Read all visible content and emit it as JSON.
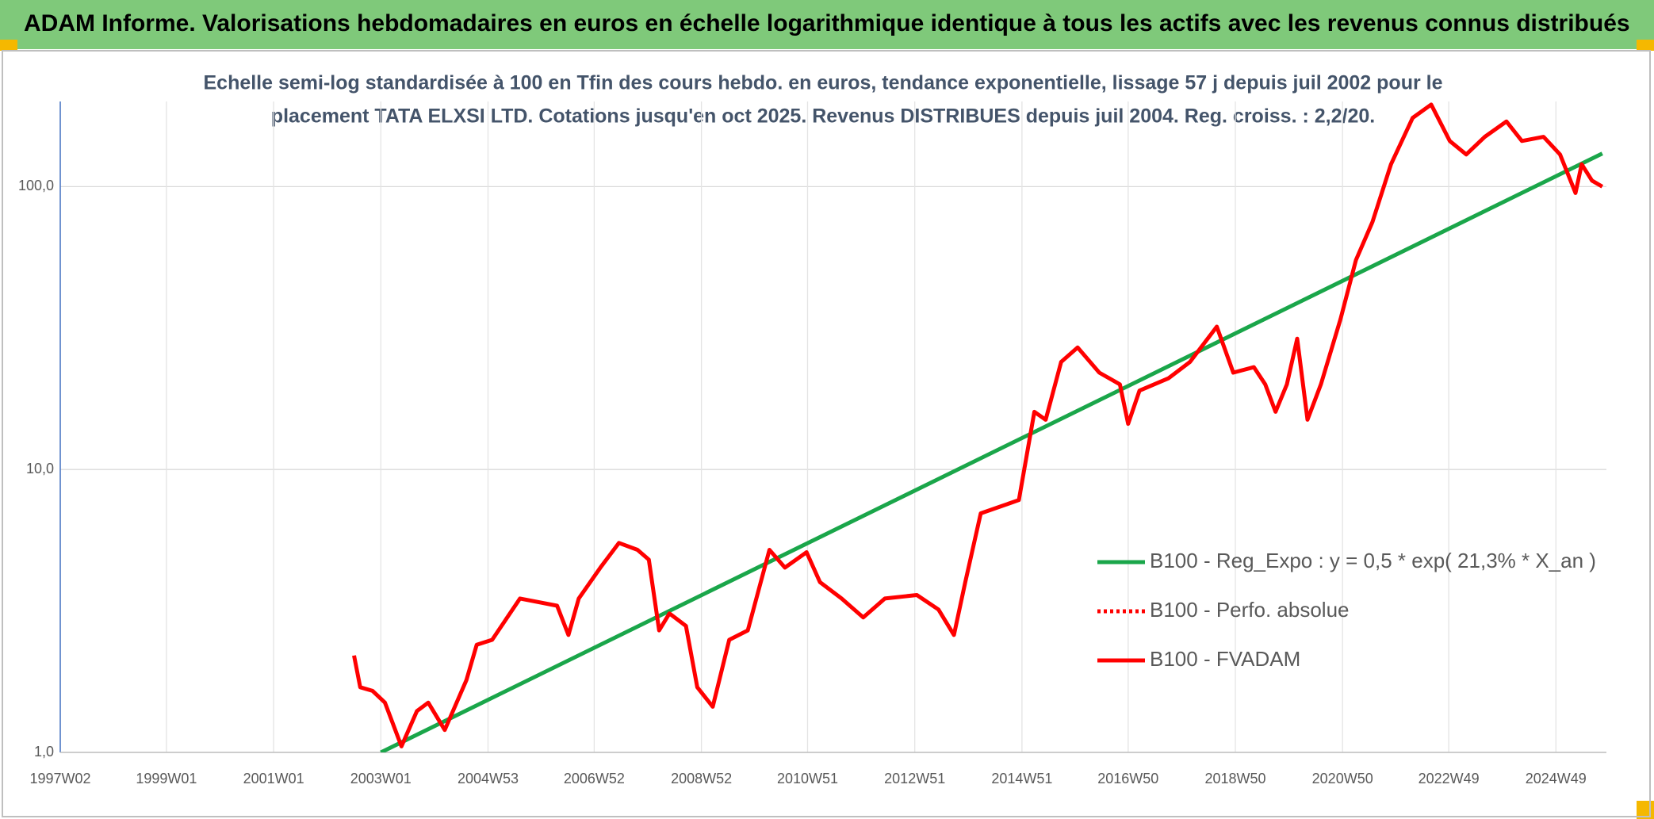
{
  "chart_data": {
    "type": "line",
    "header": "ADAM Informe. Valorisations hebdomadaires en euros en échelle logarithmique identique à tous les actifs avec les revenus connus distribués",
    "title_lines": [
      "Echelle semi-log standardisée à 100 en Tfin des cours hebdo. en euros, tendance exponentielle, lissage 57 j depuis juil 2002 pour le",
      "placement TATA ELXSI LTD. Cotations jusqu'en oct 2025. Revenus DISTRIBUES depuis juil 2004. Reg. croiss. : 2,2/20."
    ],
    "log_y": true,
    "ylim": [
      1,
      200
    ],
    "yticks": [
      {
        "value": 1,
        "label": "1,0"
      },
      {
        "value": 10,
        "label": "10,0"
      },
      {
        "value": 100,
        "label": "100,0"
      }
    ],
    "xlim": [
      "1997W02",
      "2025W46"
    ],
    "xticks": [
      "1997W02",
      "1999W01",
      "2001W01",
      "2003W01",
      "2004W53",
      "2006W52",
      "2008W52",
      "2010W51",
      "2012W51",
      "2014W51",
      "2016W50",
      "2018W50",
      "2020W50",
      "2022W49",
      "2024W49"
    ],
    "grid": true,
    "legend": "lower right",
    "series": [
      {
        "name": "B100 - Reg_Expo : y = 0,5 * exp( 21,3% *  X_an )",
        "color": "#1aa64a",
        "dash": false,
        "x": [
          "2003W01",
          "2025W42"
        ],
        "values": [
          1.0,
          131
        ]
      },
      {
        "name": "B100 - Perfo. absolue",
        "color": "#ff0000",
        "dash": true,
        "x": [],
        "values": []
      },
      {
        "name": "B100 - FVADAM",
        "color": "#ff0000",
        "dash": false,
        "x": [
          "2002W27",
          "2002W33",
          "2002W45",
          "2003W05",
          "2003W21",
          "2003W36",
          "2003W47",
          "2004W11",
          "2004W32",
          "2004W42",
          "2005W05",
          "2005W32",
          "2006W16",
          "2006W27",
          "2006W37",
          "2007W06",
          "2007W24",
          "2007W42",
          "2008W01",
          "2008W11",
          "2008W21",
          "2008W37",
          "2008W48",
          "2009W11",
          "2009W27",
          "2009W45",
          "2010W14",
          "2010W29",
          "2010W50",
          "2011W11",
          "2011W32",
          "2012W01",
          "2012W22",
          "2013W01",
          "2013W22",
          "2013W37",
          "2013W48",
          "2014W11",
          "2014W48",
          "2015W11",
          "2015W22",
          "2015W37",
          "2016W01",
          "2016W22",
          "2016W42",
          "2016W50",
          "2017W09",
          "2017W37",
          "2018W06",
          "2018W32",
          "2018W48",
          "2019W16",
          "2019W27",
          "2019W37",
          "2019W48",
          "2020W06",
          "2020W16",
          "2020W29",
          "2020W48",
          "2021W11",
          "2021W27",
          "2021W45",
          "2022W14",
          "2022W32",
          "2022W50",
          "2023W14",
          "2023W32",
          "2024W01",
          "2024W16",
          "2024W37",
          "2025W01",
          "2025W16",
          "2025W22",
          "2025W32",
          "2025W42"
        ],
        "values": [
          2.2,
          1.7,
          1.65,
          1.5,
          1.05,
          1.4,
          1.5,
          1.2,
          1.8,
          2.4,
          2.5,
          3.5,
          3.3,
          2.6,
          3.5,
          4.5,
          5.5,
          5.2,
          4.8,
          2.7,
          3.1,
          2.8,
          1.7,
          1.45,
          2.5,
          2.7,
          5.2,
          4.5,
          5.1,
          4.0,
          3.5,
          3.0,
          3.5,
          3.6,
          3.2,
          2.6,
          4.0,
          7.0,
          7.8,
          16,
          15,
          24,
          27,
          22,
          20,
          14.5,
          19,
          21,
          24,
          32,
          22,
          23,
          20,
          16,
          20,
          29,
          15,
          20,
          34,
          55,
          75,
          120,
          175,
          195,
          145,
          130,
          150,
          170,
          145,
          150,
          130,
          95,
          120,
          105,
          100
        ]
      }
    ]
  }
}
